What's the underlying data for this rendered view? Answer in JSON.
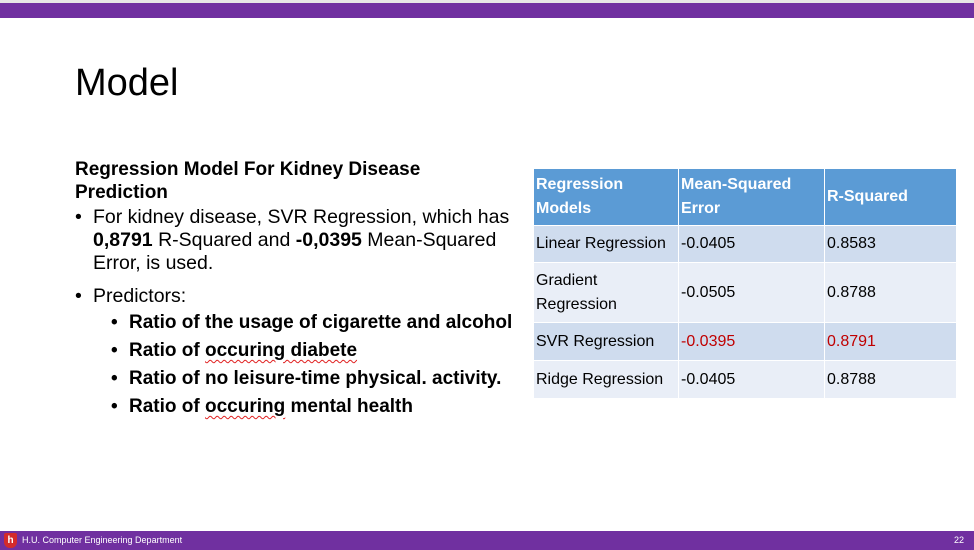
{
  "slide": {
    "title": "Model",
    "subheading": "Regression Model For Kidney Disease Prediction",
    "bullet1": {
      "part1": "For kidney disease, SVR Regression, which has ",
      "value1": "0,8791",
      "part2": " R-Squared and ",
      "value2": "-0,0395",
      "part3": " Mean-Squared Error, is used."
    },
    "bullet2_label": "Predictors:",
    "predictors": [
      "Ratio of the usage of cigarette and alcohol",
      {
        "prefix": "Ratio of ",
        "marked": "occuring diabete",
        "suffix": ""
      },
      "Ratio of no leisure-time physical. activity.",
      {
        "prefix": "Ratio of ",
        "marked": "occuring",
        "suffix": " mental health"
      }
    ]
  },
  "table": {
    "headers": [
      "Regression Models",
      "Mean-Squared Error",
      "R-Squared"
    ],
    "rows": [
      [
        "Linear Regression",
        "-0.0405",
        "0.8583"
      ],
      [
        "Gradient Regression",
        "-0.0505",
        "0.8788"
      ],
      [
        "SVR Regression",
        "-0.0395",
        "0.8791"
      ],
      [
        "Ridge Regression",
        "-0.0405",
        "0.8788"
      ]
    ],
    "highlight_color": "#c00000"
  },
  "footer": {
    "department": "H.U. Computer Engineering Department",
    "page_number": "22",
    "logo_glyph": "h"
  },
  "colors": {
    "accent": "#7030a0",
    "table_header": "#5b9bd5"
  }
}
